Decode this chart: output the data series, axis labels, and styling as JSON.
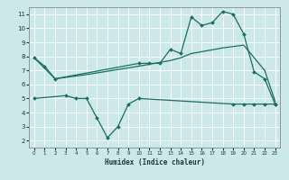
{
  "xlabel": "Humidex (Indice chaleur)",
  "xlim": [
    -0.5,
    23.5
  ],
  "ylim": [
    1.5,
    11.5
  ],
  "yticks": [
    2,
    3,
    4,
    5,
    6,
    7,
    8,
    9,
    10,
    11
  ],
  "xticks": [
    0,
    1,
    2,
    3,
    4,
    5,
    6,
    7,
    8,
    9,
    10,
    11,
    12,
    13,
    14,
    15,
    16,
    17,
    18,
    19,
    20,
    21,
    22,
    23
  ],
  "bg_color": "#cce8e8",
  "line_color": "#1a6e60",
  "line1_x": [
    0,
    1,
    2,
    10,
    11,
    12,
    13,
    14,
    15,
    16,
    17,
    18,
    19,
    20,
    21,
    22,
    23
  ],
  "line1_y": [
    7.9,
    7.3,
    6.4,
    7.5,
    7.5,
    7.5,
    8.5,
    8.2,
    10.8,
    10.2,
    10.4,
    11.2,
    11.0,
    9.6,
    6.9,
    6.4,
    4.6
  ],
  "line2_x": [
    0,
    2,
    5,
    10,
    13,
    14,
    15,
    18,
    19,
    20,
    22,
    23
  ],
  "line2_y": [
    7.9,
    6.4,
    6.7,
    7.3,
    7.7,
    7.9,
    8.2,
    8.6,
    8.7,
    8.8,
    7.0,
    4.8
  ],
  "line3_x": [
    0,
    3,
    4,
    5,
    6,
    7,
    8,
    9,
    10,
    19,
    20,
    21,
    22,
    23
  ],
  "line3_y": [
    5.0,
    5.2,
    5.0,
    5.0,
    3.6,
    2.2,
    3.0,
    4.6,
    5.0,
    4.6,
    4.6,
    4.6,
    4.6,
    4.6
  ]
}
